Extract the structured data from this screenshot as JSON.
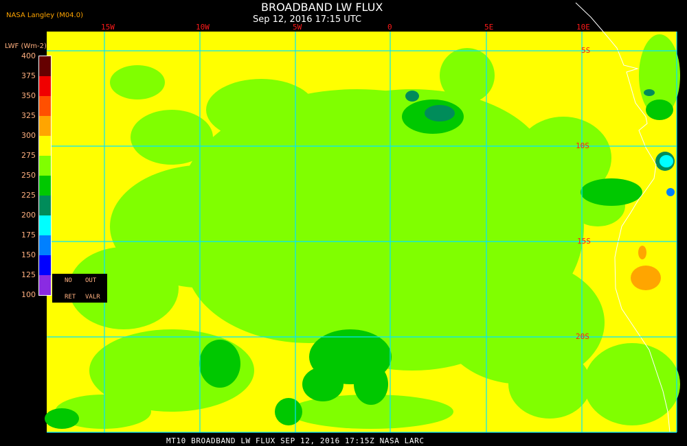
{
  "header": {
    "title": "BROADBAND LW FLUX",
    "subtitle": "Sep 12, 2016 17:15 UTC",
    "credit": "NASA Langley (M04.0)"
  },
  "grid": {
    "longitudes": [
      "15W",
      "10W",
      "5W",
      "0",
      "5E",
      "10E"
    ],
    "latitudes": [
      "5S",
      "10S",
      "15S",
      "20S"
    ],
    "line_color": "#00e5ff"
  },
  "legend": {
    "unit": "LWF (Wm-2)",
    "ticks": [
      "400",
      "375",
      "350",
      "325",
      "300",
      "275",
      "250",
      "225",
      "200",
      "175",
      "150",
      "125",
      "100"
    ],
    "colors": [
      "#650000",
      "#f00000",
      "#ff5000",
      "#ffa500",
      "#ffff00",
      "#80ff00",
      "#00c800",
      "#008c5a",
      "#00ffff",
      "#0080ff",
      "#0000ff",
      "#8a2be2"
    ],
    "no_ret": [
      "NO",
      "RET"
    ],
    "out_valr": [
      "OUT",
      "VALR"
    ]
  },
  "footer": "MT10  BROADBAND LW FLUX   SEP 12, 2016 17:15Z   NASA LARC"
}
